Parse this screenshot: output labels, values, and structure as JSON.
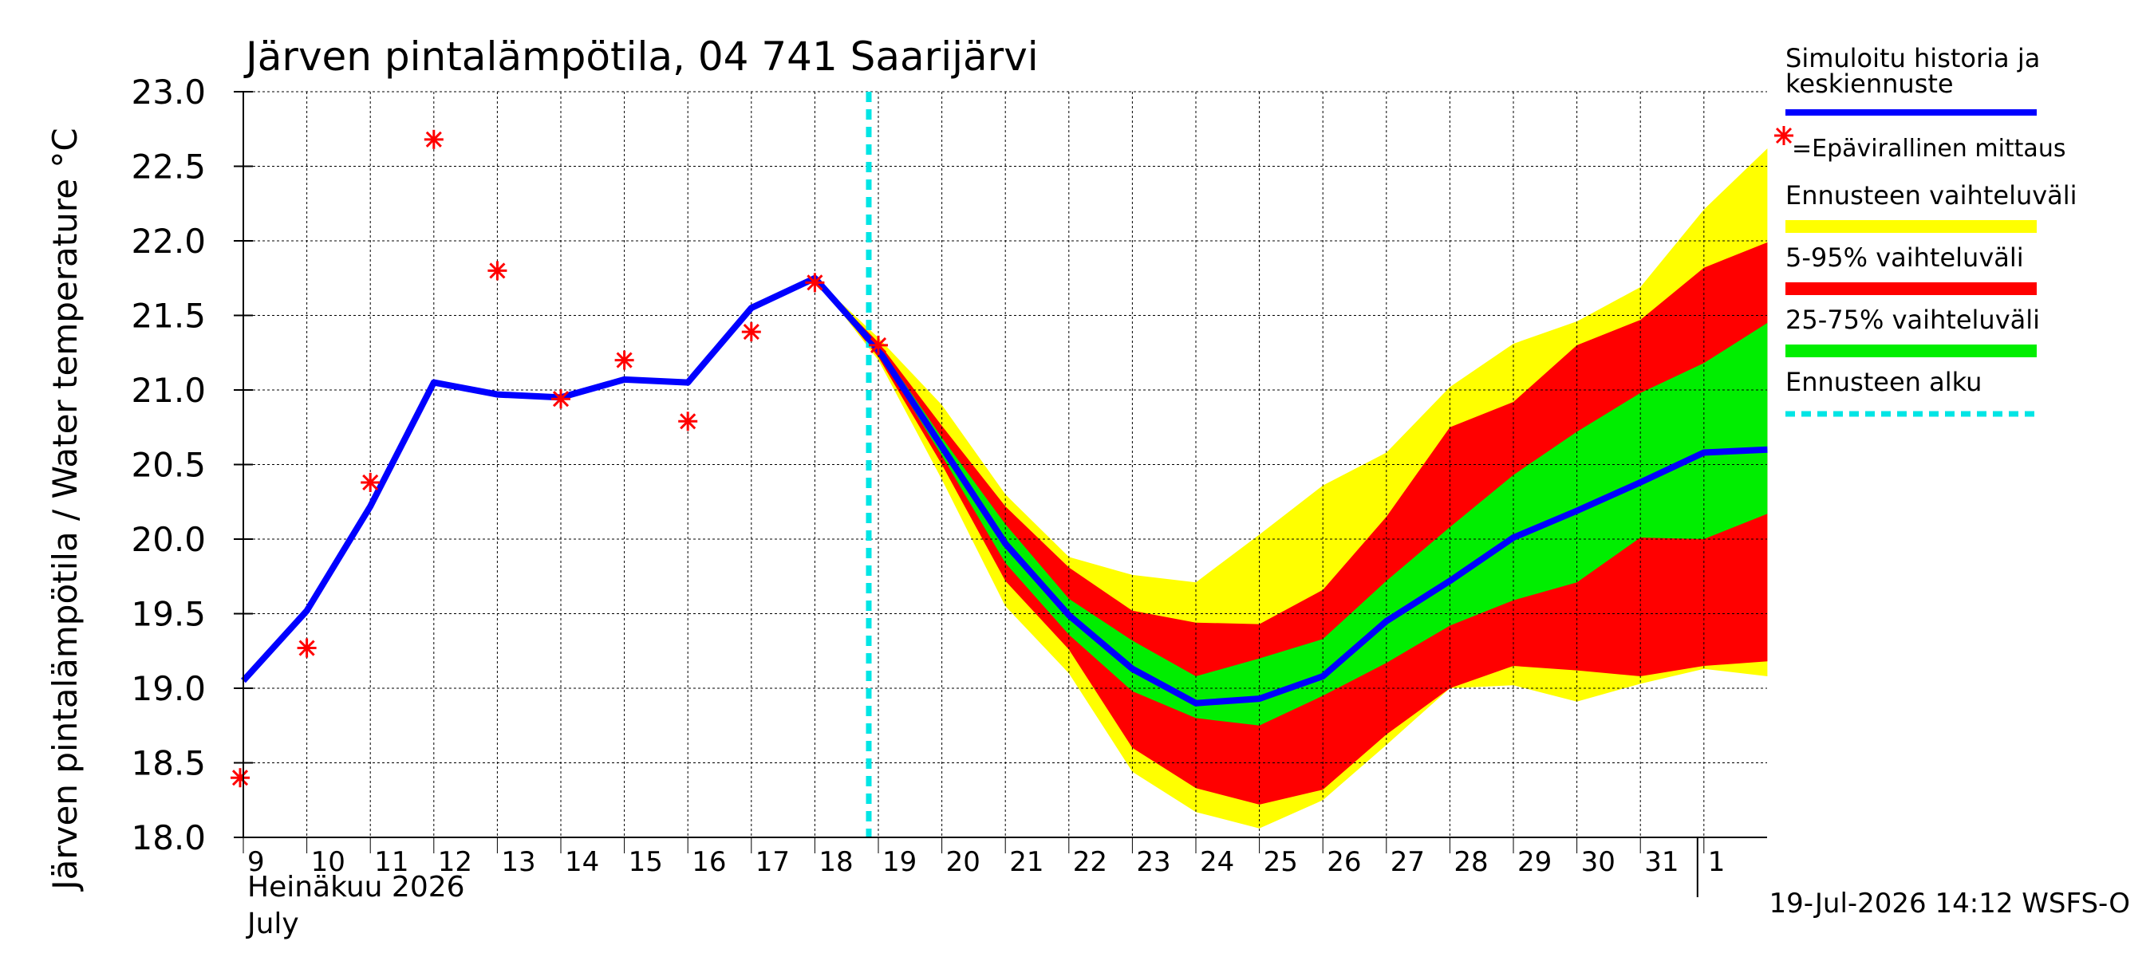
{
  "chart_data": {
    "type": "area",
    "title": "Järven pintalämpötila, 04 741 Saarijärvi",
    "ylabel": "Järven pintalämpötila / Water temperature °C",
    "xlabel": "",
    "month_label_fi": "Heinäkuu  2026",
    "month_label_en": "July",
    "footer": "19-Jul-2026 14:12 WSFS-O",
    "ylim": [
      18.0,
      23.0
    ],
    "y_ticks": [
      "18.0",
      "18.5",
      "19.0",
      "19.5",
      "20.0",
      "20.5",
      "21.0",
      "21.5",
      "22.0",
      "22.5",
      "23.0"
    ],
    "x_tick_labels": [
      "9",
      "10",
      "11",
      "12",
      "13",
      "14",
      "15",
      "16",
      "17",
      "18",
      "19",
      "20",
      "21",
      "22",
      "23",
      "24",
      "25",
      "26",
      "27",
      "28",
      "29",
      "30",
      "31",
      "1"
    ],
    "grid": true,
    "forecast_start": "19",
    "series": [
      {
        "name": "Simuloitu historia ja keskiennuste",
        "color": "#0000ff",
        "x": [
          "9",
          "10",
          "11",
          "12",
          "13",
          "14",
          "15",
          "16",
          "17",
          "18",
          "19",
          "20",
          "21",
          "22",
          "23",
          "24",
          "25",
          "26",
          "27",
          "28",
          "29",
          "30",
          "31",
          "1",
          "2"
        ],
        "values": [
          19.05,
          19.52,
          20.22,
          21.05,
          20.97,
          20.95,
          21.07,
          21.05,
          21.55,
          21.75,
          21.27,
          20.62,
          19.97,
          19.49,
          19.13,
          18.9,
          18.93,
          19.08,
          19.45,
          19.72,
          20.01,
          20.19,
          20.38,
          20.58,
          20.6
        ]
      },
      {
        "name": "=Epävirallinen mittaus",
        "color": "#ff0000",
        "x": [
          "9",
          "10",
          "11",
          "12",
          "13",
          "14",
          "15",
          "16",
          "17",
          "18",
          "19"
        ],
        "values": [
          18.4,
          19.27,
          20.38,
          22.68,
          21.8,
          20.94,
          21.2,
          20.79,
          21.39,
          21.72,
          21.3
        ]
      }
    ],
    "bands": [
      {
        "name": "Ennusteen vaihteluväli",
        "color": "#ffff00",
        "x": [
          "18",
          "19",
          "20",
          "21",
          "22",
          "23",
          "24",
          "25",
          "26",
          "27",
          "28",
          "29",
          "30",
          "31",
          "1",
          "2"
        ],
        "upper": [
          21.75,
          21.35,
          20.9,
          20.3,
          19.88,
          19.76,
          19.71,
          20.03,
          20.36,
          20.58,
          21.02,
          21.31,
          21.46,
          21.69,
          22.21,
          22.62
        ],
        "lower": [
          21.75,
          21.2,
          20.4,
          19.55,
          19.1,
          18.44,
          18.17,
          18.06,
          18.25,
          18.62,
          19.0,
          19.02,
          18.91,
          19.03,
          19.13,
          19.08
        ]
      },
      {
        "name": "5-95% vaihteluväli",
        "color": "#ff0000",
        "x": [
          "18",
          "19",
          "20",
          "21",
          "22",
          "23",
          "24",
          "25",
          "26",
          "27",
          "28",
          "29",
          "30",
          "31",
          "1",
          "2"
        ],
        "upper": [
          21.75,
          21.32,
          20.76,
          20.22,
          19.81,
          19.52,
          19.44,
          19.43,
          19.66,
          20.15,
          20.75,
          20.92,
          21.3,
          21.47,
          21.82,
          21.99
        ],
        "lower": [
          21.75,
          21.22,
          20.5,
          19.72,
          19.26,
          18.6,
          18.33,
          18.22,
          18.32,
          18.69,
          19.0,
          19.15,
          19.12,
          19.08,
          19.15,
          19.18
        ]
      },
      {
        "name": "25-75% vaihteluväli",
        "color": "#00ee00",
        "x": [
          "18",
          "19",
          "20",
          "21",
          "22",
          "23",
          "24",
          "25",
          "26",
          "27",
          "28",
          "29",
          "30",
          "31",
          "1",
          "2"
        ],
        "upper": [
          21.75,
          21.3,
          20.68,
          20.1,
          19.6,
          19.32,
          19.08,
          19.2,
          19.33,
          19.72,
          20.08,
          20.43,
          20.72,
          20.98,
          21.18,
          21.45
        ],
        "lower": [
          21.75,
          21.25,
          20.56,
          19.84,
          19.36,
          18.98,
          18.8,
          18.75,
          18.95,
          19.17,
          19.42,
          19.59,
          19.71,
          20.01,
          20.0,
          20.17
        ]
      }
    ],
    "legend": {
      "position": "right",
      "entries": [
        {
          "label": "Simuloitu historia ja",
          "label2": "keskiennuste",
          "color": "#0000ff",
          "kind": "line"
        },
        {
          "label": "=Epävirallinen mittaus",
          "color": "#ff0000",
          "kind": "marker"
        },
        {
          "label": "Ennusteen vaihteluväli",
          "color": "#ffff00",
          "kind": "band"
        },
        {
          "label": "5-95% vaihteluväli",
          "color": "#ff0000",
          "kind": "band"
        },
        {
          "label": "25-75% vaihteluväli",
          "color": "#00ee00",
          "kind": "band"
        },
        {
          "label": "Ennusteen alku",
          "color": "#00e5e5",
          "kind": "dashed"
        }
      ]
    }
  }
}
